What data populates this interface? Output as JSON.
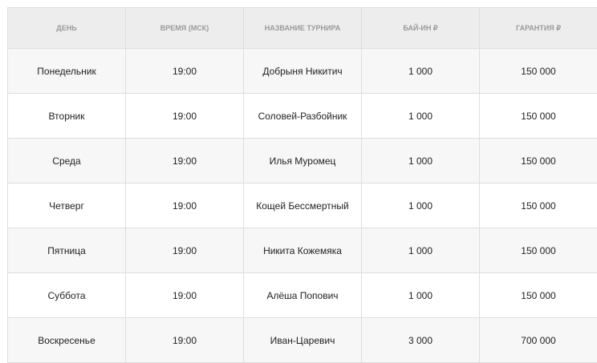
{
  "headers": [
    "День",
    "Время (МСК)",
    "Название турнира",
    "Бай-ин ₽",
    "Гарантия ₽"
  ],
  "rows": [
    [
      "Понедельник",
      "19:00",
      "Добрыня Никитич",
      "1 000",
      "150 000"
    ],
    [
      "Вторник",
      "19:00",
      "Соловей-Разбойник",
      "1 000",
      "150 000"
    ],
    [
      "Среда",
      "19:00",
      "Илья Муромец",
      "1 000",
      "150 000"
    ],
    [
      "Четверг",
      "19:00",
      "Кощей Бессмертный",
      "1 000",
      "150 000"
    ],
    [
      "Пятница",
      "19:00",
      "Никита Кожемяка",
      "1 000",
      "150 000"
    ],
    [
      "Суббота",
      "19:00",
      "Алёша Попович",
      "1 000",
      "150 000"
    ],
    [
      "Воскресенье",
      "19:00",
      "Иван-Царевич",
      "3 000",
      "700 000"
    ]
  ]
}
